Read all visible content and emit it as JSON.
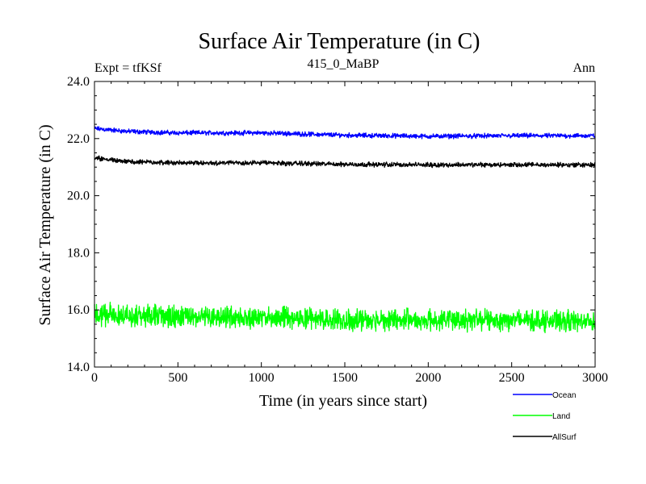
{
  "chart_data": {
    "type": "line",
    "title": "Surface Air Temperature (in C)",
    "subtitle": "415_0_MaBP",
    "header_left": "Expt = tfKSf",
    "header_right": "Ann",
    "xlabel": "Time (in years since start)",
    "ylabel": "Surface Air Temperature (in C)",
    "xlim": [
      0,
      3000
    ],
    "ylim": [
      14.0,
      24.0
    ],
    "xticks": [
      0,
      500,
      1000,
      1500,
      2000,
      2500,
      3000
    ],
    "xtick_labels": [
      "0",
      "500",
      "1000",
      "1500",
      "2000",
      "2500",
      "3000"
    ],
    "yticks": [
      14,
      16,
      18,
      20,
      22,
      24
    ],
    "ytick_labels": [
      "14.0",
      "16.0",
      "18.0",
      "20.0",
      "22.0",
      "24.0"
    ],
    "grid": false,
    "legend_position": "bottom-right",
    "series": [
      {
        "name": "Ocean",
        "color": "#0000ff",
        "x": [
          0,
          100,
          200,
          500,
          1000,
          1500,
          2000,
          2500,
          3000
        ],
        "values": [
          22.35,
          22.3,
          22.25,
          22.2,
          22.2,
          22.12,
          22.08,
          22.1,
          22.1
        ],
        "noise_amplitude": 0.1
      },
      {
        "name": "Land",
        "color": "#00ff00",
        "x": [
          0,
          500,
          1000,
          1500,
          2000,
          2500,
          3000
        ],
        "values": [
          15.85,
          15.75,
          15.75,
          15.65,
          15.65,
          15.65,
          15.6
        ],
        "noise_amplitude": 0.45
      },
      {
        "name": "AllSurf",
        "color": "#000000",
        "x": [
          0,
          100,
          200,
          500,
          1000,
          1500,
          2000,
          2500,
          3000
        ],
        "values": [
          21.32,
          21.25,
          21.2,
          21.15,
          21.15,
          21.1,
          21.08,
          21.08,
          21.08
        ],
        "noise_amplitude": 0.1
      }
    ]
  }
}
